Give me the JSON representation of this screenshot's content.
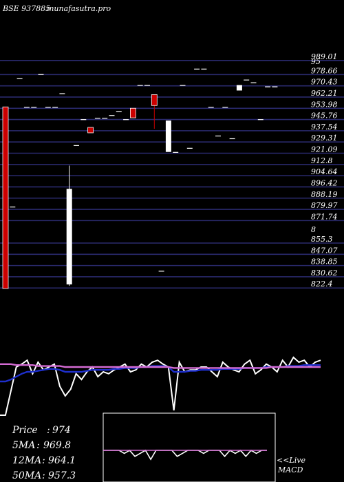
{
  "header": {
    "symbol": "BSE 937885",
    "site": "munafasutra.pro"
  },
  "price_axis": {
    "min": 820,
    "max": 1000,
    "labels": [
      "989.01",
      "978.66",
      "970.43",
      "962.21",
      "953.98",
      "945.76",
      "937.54",
      "929.31",
      "921.09",
      "912.8",
      "904.64",
      "896.42",
      "888.19",
      "879.97",
      "871.74",
      "855.3",
      "847.07",
      "838.85",
      "830.62",
      "822.4"
    ],
    "overlay_labels": [
      {
        "text": "95",
        "value": 986.5
      },
      {
        "text": "8",
        "value": 863.3
      }
    ]
  },
  "stats": {
    "price_label": "Price",
    "price_value": "974",
    "ma5_label": "5MA",
    "ma5_value": "969.8",
    "ma12_label": "12MA",
    "ma12_value": "964.1",
    "ma50_label": "50MA",
    "ma50_value": "957.3"
  },
  "macd": {
    "live_label": "<<Live",
    "macd_label": "MACD"
  },
  "colors": {
    "background": "#000000",
    "gridline": "#2a2a6e",
    "up_candle": "#ffffff",
    "down_candle": "#cc0000",
    "ma_fast": "#ffffff",
    "ma_slow": "#1e2fcc",
    "ma_long": "#d46bd4",
    "text": "#ffffff"
  },
  "chart_data": [
    {
      "type": "candlestick",
      "title": "BSE 937885",
      "ylim": [
        820,
        1000
      ],
      "candles": [
        {
          "i": 0,
          "o": 955,
          "c": 822,
          "h": 955,
          "l": 822
        },
        {
          "i": 1,
          "o": 882,
          "c": 882,
          "h": 882,
          "l": 882
        },
        {
          "i": 2,
          "o": 976,
          "c": 976,
          "h": 976,
          "l": 976
        },
        {
          "i": 3,
          "o": 955,
          "c": 955,
          "h": 955,
          "l": 955
        },
        {
          "i": 4,
          "o": 955,
          "c": 955,
          "h": 955,
          "l": 955
        },
        {
          "i": 5,
          "o": 979,
          "c": 979,
          "h": 979,
          "l": 979
        },
        {
          "i": 6,
          "o": 955,
          "c": 955,
          "h": 955,
          "l": 955
        },
        {
          "i": 7,
          "o": 955,
          "c": 955,
          "h": 955,
          "l": 955
        },
        {
          "i": 8,
          "o": 965,
          "c": 965,
          "h": 965,
          "l": 965
        },
        {
          "i": 9,
          "o": 825,
          "c": 895,
          "h": 912,
          "l": 824
        },
        {
          "i": 10,
          "o": 927,
          "c": 927,
          "h": 927,
          "l": 927
        },
        {
          "i": 11,
          "o": 946,
          "c": 946,
          "h": 946,
          "l": 946
        },
        {
          "i": 12,
          "o": 940,
          "c": 936,
          "h": 940,
          "l": 936
        },
        {
          "i": 13,
          "o": 947,
          "c": 947,
          "h": 947,
          "l": 947
        },
        {
          "i": 14,
          "o": 947,
          "c": 947,
          "h": 947,
          "l": 947
        },
        {
          "i": 15,
          "o": 949,
          "c": 949,
          "h": 949,
          "l": 949
        },
        {
          "i": 16,
          "o": 952,
          "c": 952,
          "h": 952,
          "l": 952
        },
        {
          "i": 17,
          "o": 946,
          "c": 946,
          "h": 946,
          "l": 946
        },
        {
          "i": 18,
          "o": 954,
          "c": 947,
          "h": 954,
          "l": 947
        },
        {
          "i": 19,
          "o": 971,
          "c": 971,
          "h": 971,
          "l": 971
        },
        {
          "i": 20,
          "o": 971,
          "c": 971,
          "h": 971,
          "l": 971
        },
        {
          "i": 21,
          "o": 964,
          "c": 956,
          "h": 964,
          "l": 939
        },
        {
          "i": 22,
          "o": 835,
          "c": 835,
          "h": 835,
          "l": 835
        },
        {
          "i": 23,
          "o": 922,
          "c": 945,
          "h": 945,
          "l": 922
        },
        {
          "i": 24,
          "o": 922,
          "c": 922,
          "h": 922,
          "l": 922
        },
        {
          "i": 25,
          "o": 971,
          "c": 971,
          "h": 971,
          "l": 971
        },
        {
          "i": 26,
          "o": 925,
          "c": 925,
          "h": 925,
          "l": 925
        },
        {
          "i": 27,
          "o": 983,
          "c": 983,
          "h": 983,
          "l": 983
        },
        {
          "i": 28,
          "o": 983,
          "c": 983,
          "h": 983,
          "l": 983
        },
        {
          "i": 29,
          "o": 955,
          "c": 955,
          "h": 955,
          "l": 955
        },
        {
          "i": 30,
          "o": 934,
          "c": 934,
          "h": 934,
          "l": 934
        },
        {
          "i": 31,
          "o": 955,
          "c": 955,
          "h": 955,
          "l": 955
        },
        {
          "i": 32,
          "o": 932,
          "c": 932,
          "h": 932,
          "l": 932
        },
        {
          "i": 33,
          "o": 967,
          "c": 971,
          "h": 971,
          "l": 967
        },
        {
          "i": 34,
          "o": 975,
          "c": 975,
          "h": 975,
          "l": 975
        },
        {
          "i": 35,
          "o": 973,
          "c": 973,
          "h": 973,
          "l": 973
        },
        {
          "i": 36,
          "o": 946,
          "c": 946,
          "h": 946,
          "l": 946
        },
        {
          "i": 37,
          "o": 970,
          "c": 970,
          "h": 970,
          "l": 970
        },
        {
          "i": 38,
          "o": 970,
          "c": 970,
          "h": 970,
          "l": 970
        }
      ]
    },
    {
      "type": "line",
      "ylim": [
        0,
        100
      ],
      "series": [
        {
          "color": "#ffffff",
          "values": [
            5,
            5,
            30,
            55,
            58,
            62,
            48,
            60,
            52,
            55,
            58,
            35,
            25,
            32,
            48,
            42,
            50,
            55,
            45,
            50,
            48,
            52,
            55,
            58,
            50,
            52,
            58,
            55,
            60,
            62,
            58,
            55,
            10,
            60,
            50,
            52,
            52,
            55,
            55,
            50,
            45,
            60,
            55,
            52,
            50,
            58,
            62,
            48,
            52,
            58,
            55,
            50,
            62,
            55,
            65,
            60,
            62,
            55,
            60,
            62
          ]
        },
        {
          "color": "#1e2fcc",
          "values": [
            40,
            40,
            42,
            45,
            48,
            50,
            50,
            51,
            52,
            53,
            53,
            52,
            50,
            50,
            50,
            50,
            51,
            52,
            52,
            52,
            52,
            53,
            53,
            54,
            54,
            54,
            55,
            55,
            56,
            56,
            56,
            55,
            50,
            50,
            50,
            51,
            51,
            52,
            52,
            52,
            52,
            53,
            53,
            53,
            53,
            54,
            54,
            54,
            54,
            55,
            55,
            55,
            55,
            56,
            56,
            56,
            57,
            57,
            57,
            57
          ]
        },
        {
          "color": "#d46bd4",
          "values": [
            58,
            58,
            58,
            57,
            57,
            57,
            57,
            56,
            56,
            56,
            56,
            56,
            55,
            55,
            55,
            55,
            55,
            55,
            55,
            55,
            55,
            55,
            55,
            55,
            55,
            55,
            55,
            55,
            55,
            55,
            55,
            55,
            54,
            54,
            54,
            54,
            54,
            54,
            54,
            54,
            54,
            54,
            54,
            54,
            54,
            54,
            54,
            54,
            54,
            54,
            55,
            55,
            55,
            55,
            55,
            55,
            55,
            55,
            55,
            55
          ]
        }
      ]
    },
    {
      "type": "line",
      "ylim": [
        -10,
        10
      ],
      "series": [
        {
          "color": "#ffffff",
          "values": [
            0,
            0,
            0,
            0,
            -1,
            0,
            -2,
            -1,
            0,
            -3,
            0,
            0,
            0,
            0,
            -2,
            -1,
            0,
            0,
            0,
            -1,
            0,
            0,
            0,
            -2,
            0,
            -1,
            0,
            -2,
            0,
            -1,
            0,
            0
          ]
        },
        {
          "color": "#d46bd4",
          "values": [
            0,
            0,
            0,
            0,
            0,
            0,
            0,
            0,
            0,
            0,
            0,
            0,
            0,
            0,
            0,
            0,
            0,
            0,
            0,
            0,
            0,
            0,
            0,
            0,
            0,
            0,
            0,
            0,
            0,
            0,
            0,
            0
          ]
        }
      ]
    }
  ]
}
